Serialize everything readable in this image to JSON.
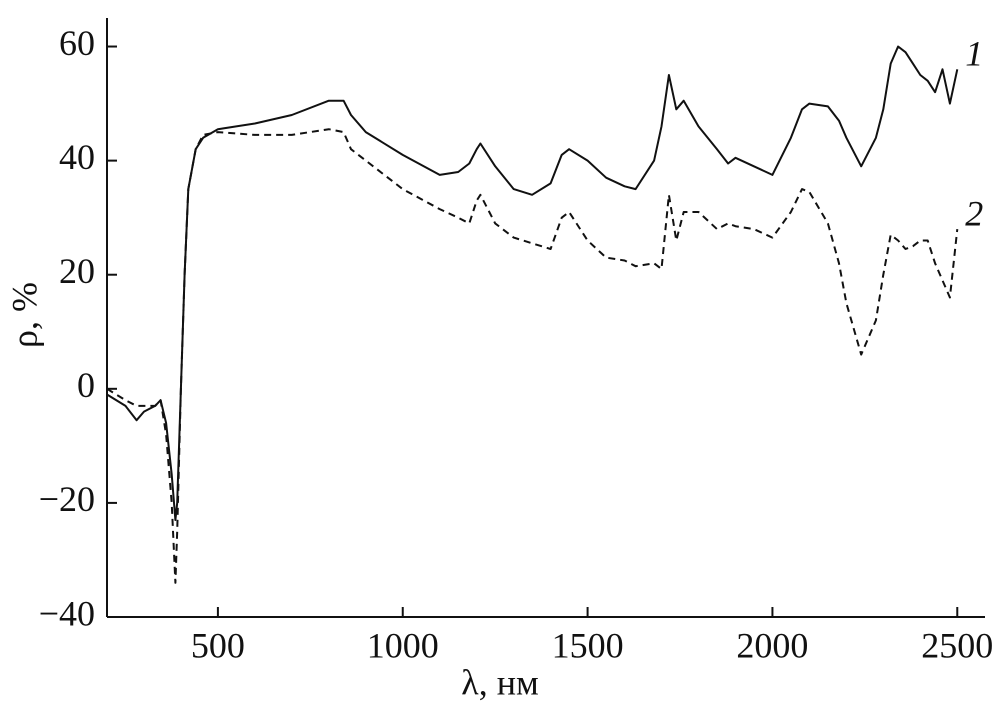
{
  "chart_data": {
    "type": "line",
    "xlabel": "λ, нм",
    "ylabel": "ρ, %",
    "x": [
      200,
      250,
      280,
      300,
      330,
      345,
      360,
      375,
      385,
      390,
      400,
      410,
      420,
      440,
      460,
      500,
      600,
      700,
      800,
      840,
      860,
      900,
      1000,
      1100,
      1150,
      1180,
      1200,
      1210,
      1250,
      1300,
      1350,
      1400,
      1430,
      1450,
      1500,
      1550,
      1600,
      1630,
      1680,
      1700,
      1720,
      1740,
      1760,
      1800,
      1850,
      1880,
      1900,
      1950,
      2000,
      2050,
      2080,
      2100,
      2150,
      2180,
      2200,
      2240,
      2280,
      2300,
      2320,
      2340,
      2360,
      2380,
      2400,
      2420,
      2440,
      2460,
      2480,
      2500
    ],
    "series": [
      {
        "name": "1",
        "color": "#111111",
        "linestyle": "solid",
        "values": [
          -1,
          -3,
          -5.5,
          -4,
          -3,
          -2,
          -6,
          -15,
          -23,
          -20,
          0,
          20,
          35,
          42,
          44,
          45.5,
          46.5,
          48,
          50.5,
          50.5,
          48,
          45,
          41,
          37.5,
          38,
          39.5,
          42,
          43,
          39,
          35,
          34,
          36,
          41,
          42,
          40,
          37,
          35.5,
          35,
          40,
          46,
          55,
          49,
          50.5,
          46,
          42,
          39.5,
          40.5,
          39,
          37.5,
          44,
          49,
          50,
          49.5,
          47,
          44,
          39,
          44,
          49,
          57,
          60,
          59,
          57,
          55,
          54,
          52,
          56,
          50,
          56
        ]
      },
      {
        "name": "2",
        "color": "#111111",
        "linestyle": "dashed",
        "values": [
          0,
          -2,
          -3,
          -3,
          -3,
          -2,
          -8,
          -20,
          -34,
          -25,
          0,
          20,
          35,
          42,
          44.5,
          45,
          44.5,
          44.5,
          45.5,
          45,
          42,
          40,
          35,
          31.5,
          30,
          29,
          33,
          34,
          29,
          26.5,
          25.5,
          24.5,
          30,
          31,
          26,
          23,
          22.5,
          21.5,
          22,
          21,
          34,
          26,
          31,
          31,
          28,
          29,
          28.5,
          28,
          26.5,
          31,
          35,
          34.5,
          29,
          22,
          15,
          6,
          12,
          20,
          27,
          26,
          24.5,
          25,
          26,
          26,
          22,
          19,
          16,
          28
        ]
      }
    ],
    "xlim": [
      200,
      2575
    ],
    "ylim": [
      -40,
      65
    ],
    "xticks": [
      500,
      1000,
      1500,
      2000,
      2500
    ],
    "yticks": [
      {
        "value": -40,
        "label": "−40"
      },
      {
        "value": -20,
        "label": "−20"
      },
      0,
      20,
      40,
      60
    ]
  }
}
